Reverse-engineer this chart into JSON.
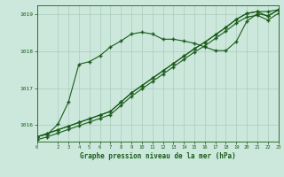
{
  "background_color": "#cce8dc",
  "grid_color": "#aaccbb",
  "line_color": "#1a5c1a",
  "title": "Graphe pression niveau de la mer (hPa)",
  "xlim": [
    0,
    23
  ],
  "ylim": [
    1015.55,
    1019.25
  ],
  "yticks": [
    1016,
    1017,
    1018,
    1019
  ],
  "xticks": [
    0,
    2,
    3,
    4,
    5,
    6,
    7,
    8,
    9,
    10,
    11,
    12,
    13,
    14,
    15,
    16,
    17,
    18,
    19,
    20,
    21,
    22,
    23
  ],
  "s1_x": [
    0,
    1,
    2,
    3,
    4,
    5,
    6,
    7,
    8,
    9,
    10,
    11,
    12,
    13,
    14,
    15,
    16,
    17,
    18,
    19,
    20,
    21,
    22,
    23
  ],
  "s1_y": [
    1015.68,
    1015.75,
    1016.02,
    1016.62,
    1017.65,
    1017.72,
    1017.88,
    1018.12,
    1018.28,
    1018.47,
    1018.52,
    1018.47,
    1018.33,
    1018.33,
    1018.28,
    1018.22,
    1018.12,
    1018.02,
    1018.02,
    1018.27,
    1018.82,
    1019.02,
    1018.97,
    1019.12
  ],
  "s2_x": [
    0,
    1,
    2,
    3,
    4,
    5,
    6,
    7,
    8,
    9,
    10,
    11,
    12,
    13,
    14,
    15,
    16,
    17,
    18,
    19,
    20,
    21,
    22,
    23
  ],
  "s2_y": [
    1015.68,
    1015.77,
    1015.87,
    1015.97,
    1016.07,
    1016.17,
    1016.27,
    1016.37,
    1016.62,
    1016.87,
    1017.07,
    1017.27,
    1017.47,
    1017.67,
    1017.87,
    1018.07,
    1018.25,
    1018.45,
    1018.65,
    1018.87,
    1019.03,
    1019.08,
    1019.08,
    1019.13
  ],
  "s3_x": [
    0,
    1,
    2,
    3,
    4,
    5,
    6,
    7,
    8,
    9,
    10,
    11,
    12,
    13,
    14,
    15,
    16,
    17,
    18,
    19,
    20,
    21,
    22,
    23
  ],
  "s3_y": [
    1015.68,
    1015.77,
    1015.87,
    1015.97,
    1016.07,
    1016.17,
    1016.27,
    1016.37,
    1016.62,
    1016.87,
    1017.07,
    1017.27,
    1017.47,
    1017.67,
    1017.87,
    1018.07,
    1018.25,
    1018.45,
    1018.65,
    1018.87,
    1019.03,
    1019.08,
    1018.95,
    1019.13
  ],
  "s4_x": [
    0,
    1,
    2,
    3,
    4,
    5,
    6,
    7,
    8,
    9,
    10,
    11,
    12,
    13,
    14,
    15,
    16,
    17,
    18,
    19,
    20,
    21,
    22,
    23
  ],
  "s4_y": [
    1015.6,
    1015.68,
    1015.78,
    1015.88,
    1015.98,
    1016.08,
    1016.18,
    1016.28,
    1016.53,
    1016.78,
    1016.98,
    1017.18,
    1017.38,
    1017.58,
    1017.78,
    1017.98,
    1018.15,
    1018.35,
    1018.55,
    1018.77,
    1018.93,
    1018.98,
    1018.85,
    1019.03
  ],
  "marker": "+",
  "markersize": 2.5,
  "linewidth": 0.8
}
